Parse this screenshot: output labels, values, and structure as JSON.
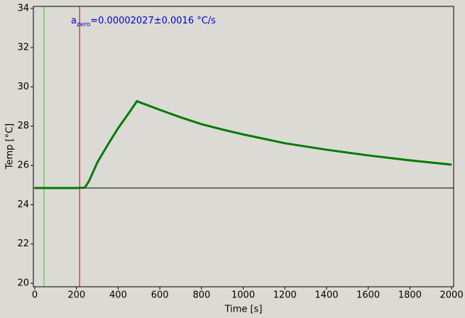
{
  "chart_data": {
    "type": "line",
    "xlabel": "Time [s]",
    "ylabel": "Temp [°C]",
    "annotation": {
      "base": "a",
      "subscript": "zero",
      "text": "=0.00002027±0.0016 °C/s",
      "color": "#0000cc"
    },
    "x": [
      0,
      100,
      200,
      240,
      260,
      300,
      350,
      400,
      450,
      490,
      520,
      600,
      700,
      800,
      900,
      1000,
      1200,
      1400,
      1600,
      1800,
      2000
    ],
    "series": [
      {
        "color": "#007a00",
        "values": [
          24.85,
          24.85,
          24.85,
          24.87,
          25.2,
          26.15,
          27.05,
          27.9,
          28.65,
          29.27,
          29.15,
          28.83,
          28.45,
          28.1,
          27.83,
          27.58,
          27.13,
          26.8,
          26.51,
          26.26,
          26.04
        ]
      }
    ],
    "vlines": [
      {
        "x": 44,
        "color": "#33cc33"
      },
      {
        "x": 215,
        "color": "#cc0000"
      }
    ],
    "hline": {
      "y": 24.85,
      "color": "#000000"
    },
    "xlim": [
      -7,
      2010
    ],
    "ylim": [
      19.82,
      34.1
    ],
    "xticks": [
      0,
      200,
      400,
      600,
      800,
      1000,
      1200,
      1400,
      1600,
      1800,
      2000
    ],
    "yticks": [
      20,
      22,
      24,
      26,
      28,
      30,
      32,
      34
    ]
  }
}
